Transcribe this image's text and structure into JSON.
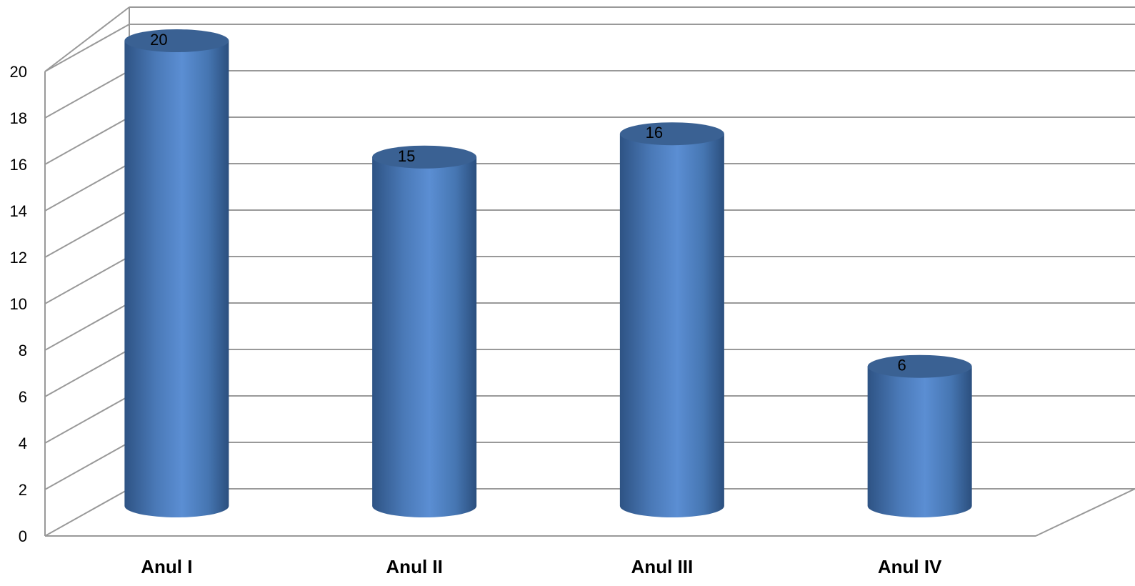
{
  "chart_data": {
    "type": "bar",
    "style": "3d-cylinder",
    "categories": [
      "Anul I",
      "Anul II",
      "Anul III",
      "Anul IV"
    ],
    "series": [
      {
        "values": [
          20,
          15,
          16,
          6
        ],
        "color": "#4F81BD"
      }
    ],
    "data_labels": [
      "20",
      "15",
      "16",
      "6"
    ],
    "yticks": [
      "0",
      "2",
      "4",
      "6",
      "8",
      "10",
      "12",
      "14",
      "16",
      "18",
      "20"
    ],
    "ylim": [
      0,
      20
    ],
    "grid": true,
    "legend": false,
    "colors": {
      "bar": "#4F81BD",
      "bar_dark": "#2E5384",
      "bar_top": "#3A6193",
      "grid": "#999999"
    }
  }
}
